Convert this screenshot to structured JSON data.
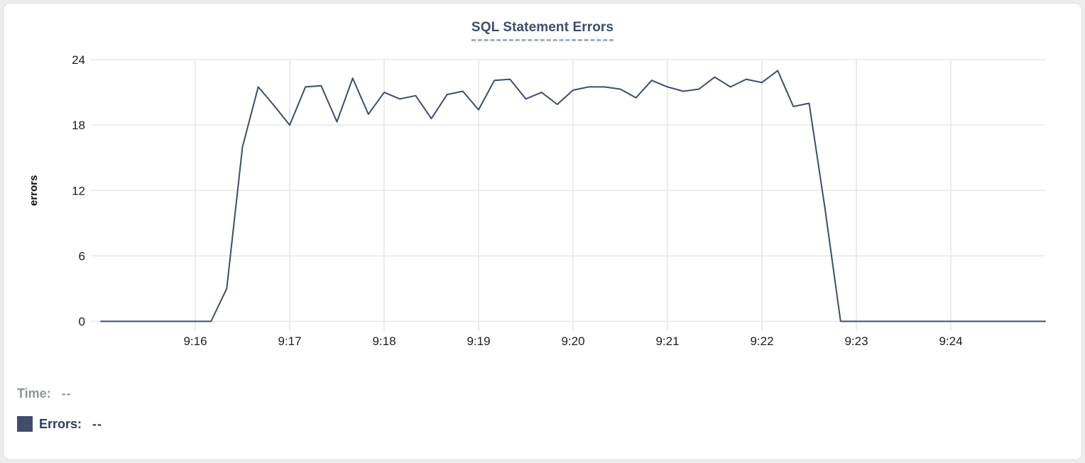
{
  "chart_data": {
    "type": "line",
    "title": "SQL Statement Errors",
    "ylabel": "errors",
    "xlabel": "",
    "grid": true,
    "legend_position": "bottom-left",
    "y_ticks": [
      0,
      6,
      12,
      18,
      24
    ],
    "ylim": [
      0,
      24
    ],
    "x_ticks": [
      "9:16",
      "9:17",
      "9:18",
      "9:19",
      "9:20",
      "9:21",
      "9:22",
      "9:23",
      "9:24"
    ],
    "x_range": [
      "9:15:00",
      "9:25:00"
    ],
    "series": [
      {
        "name": "Errors",
        "color": "#3e4e6c",
        "points": [
          [
            "9:15:00",
            0
          ],
          [
            "9:15:10",
            0
          ],
          [
            "9:15:20",
            0
          ],
          [
            "9:15:30",
            0
          ],
          [
            "9:15:40",
            0
          ],
          [
            "9:15:50",
            0
          ],
          [
            "9:16:00",
            0
          ],
          [
            "9:16:10",
            0
          ],
          [
            "9:16:20",
            3
          ],
          [
            "9:16:30",
            16
          ],
          [
            "9:16:40",
            21.5
          ],
          [
            "9:16:50",
            19.8
          ],
          [
            "9:17:00",
            18
          ],
          [
            "9:17:10",
            21.5
          ],
          [
            "9:17:20",
            21.6
          ],
          [
            "9:17:30",
            18.3
          ],
          [
            "9:17:40",
            22.3
          ],
          [
            "9:17:50",
            19
          ],
          [
            "9:18:00",
            21
          ],
          [
            "9:18:10",
            20.4
          ],
          [
            "9:18:20",
            20.7
          ],
          [
            "9:18:30",
            18.6
          ],
          [
            "9:18:40",
            20.8
          ],
          [
            "9:18:50",
            21.1
          ],
          [
            "9:19:00",
            19.4
          ],
          [
            "9:19:10",
            22.1
          ],
          [
            "9:19:20",
            22.2
          ],
          [
            "9:19:30",
            20.4
          ],
          [
            "9:19:40",
            21.0
          ],
          [
            "9:19:50",
            19.9
          ],
          [
            "9:20:00",
            21.2
          ],
          [
            "9:20:10",
            21.5
          ],
          [
            "9:20:20",
            21.5
          ],
          [
            "9:20:30",
            21.3
          ],
          [
            "9:20:40",
            20.5
          ],
          [
            "9:20:50",
            22.1
          ],
          [
            "9:21:00",
            21.5
          ],
          [
            "9:21:10",
            21.1
          ],
          [
            "9:21:20",
            21.3
          ],
          [
            "9:21:30",
            22.4
          ],
          [
            "9:21:40",
            21.5
          ],
          [
            "9:21:50",
            22.2
          ],
          [
            "9:22:00",
            21.9
          ],
          [
            "9:22:10",
            23
          ],
          [
            "9:22:20",
            19.7
          ],
          [
            "9:22:30",
            20
          ],
          [
            "9:22:40",
            10.4
          ],
          [
            "9:22:50",
            0
          ],
          [
            "9:23:00",
            0
          ],
          [
            "9:23:10",
            0
          ],
          [
            "9:23:20",
            0
          ],
          [
            "9:23:30",
            0
          ],
          [
            "9:23:40",
            0
          ],
          [
            "9:23:50",
            0
          ],
          [
            "9:24:00",
            0
          ],
          [
            "9:24:10",
            0
          ],
          [
            "9:24:20",
            0
          ],
          [
            "9:24:30",
            0
          ],
          [
            "9:24:40",
            0
          ],
          [
            "9:24:50",
            0
          ],
          [
            "9:25:00",
            0
          ]
        ]
      }
    ]
  },
  "legend": {
    "time_label": "Time:",
    "time_value": "--",
    "errors_label": "Errors:",
    "errors_value": "--"
  },
  "colors": {
    "series": "#3e4e6c",
    "title": "#3c4e6e",
    "title_underline": "#a3afc6",
    "gridline": "#e7e8eb",
    "tick_text": "#1c1c1e",
    "time_legend_text": "#8e939d",
    "errors_legend_text": "#2d3d5d",
    "card_border": "#dcdde1",
    "card_bg": "#ffffff"
  }
}
